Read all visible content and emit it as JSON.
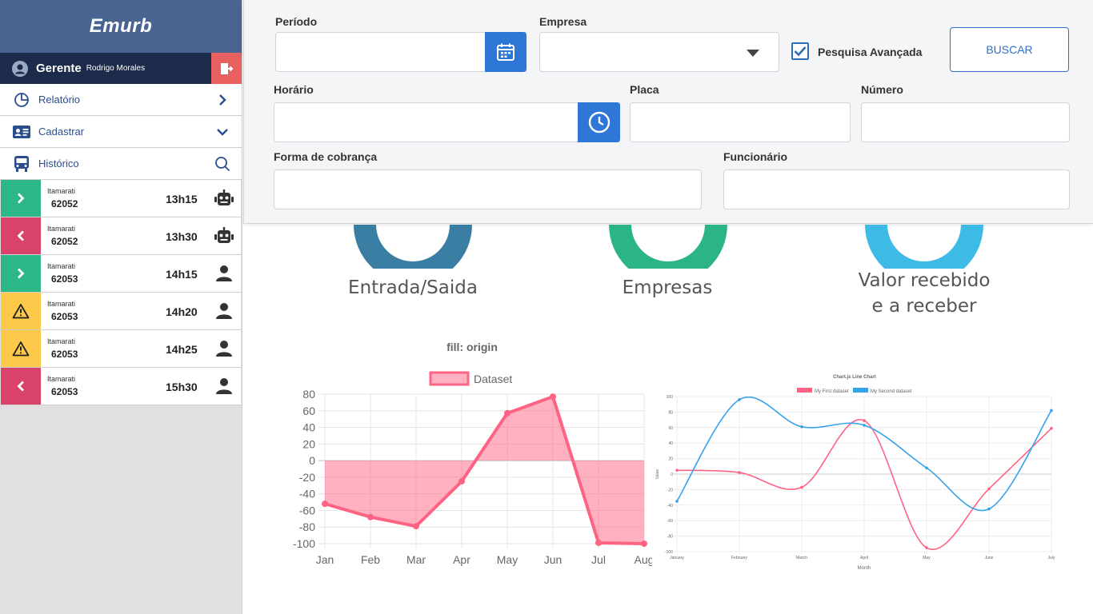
{
  "app": {
    "brand": "Emurb"
  },
  "user": {
    "role": "Gerente",
    "name": "Rodrigo Morales"
  },
  "menu": [
    {
      "label": "Relatório",
      "icon": "pie-chart-icon",
      "right_icon": "chevron-right-icon"
    },
    {
      "label": "Cadastrar",
      "icon": "id-card-icon",
      "right_icon": "chevron-down-icon"
    },
    {
      "label": "Histórico",
      "icon": "bus-icon",
      "right_icon": "search-icon"
    }
  ],
  "history": [
    {
      "company": "Itamarati",
      "plate": "62052",
      "time": "13h15",
      "status": "entrada",
      "status_color": "#2bb886",
      "status_icon": "chevron-right-icon",
      "type_icon": "robot-icon"
    },
    {
      "company": "Itamarati",
      "plate": "62052",
      "time": "13h30",
      "status": "saida",
      "status_color": "#d9426b",
      "status_icon": "chevron-left-icon",
      "type_icon": "robot-icon"
    },
    {
      "company": "Itamarati",
      "plate": "62053",
      "time": "14h15",
      "status": "entrada",
      "status_color": "#2bb886",
      "status_icon": "chevron-right-icon",
      "type_icon": "person-icon"
    },
    {
      "company": "Itamarati",
      "plate": "62053",
      "time": "14h20",
      "status": "alerta",
      "status_color": "#fcc94a",
      "status_icon": "warning-icon",
      "type_icon": "person-icon"
    },
    {
      "company": "Itamarati",
      "plate": "62053",
      "time": "14h25",
      "status": "alerta",
      "status_color": "#fcc94a",
      "status_icon": "warning-icon",
      "type_icon": "person-icon"
    },
    {
      "company": "Itamarati",
      "plate": "62053",
      "time": "15h30",
      "status": "saida",
      "status_color": "#d9426b",
      "status_icon": "chevron-left-icon",
      "type_icon": "person-icon"
    }
  ],
  "filters": {
    "periodo": {
      "label": "Período",
      "value": ""
    },
    "empresa": {
      "label": "Empresa",
      "value": ""
    },
    "advanced": {
      "label": "Pesquisa Avançada",
      "checked": true
    },
    "search_button": "BUSCAR",
    "horario": {
      "label": "Horário",
      "value": ""
    },
    "placa": {
      "label": "Placa",
      "value": ""
    },
    "numero": {
      "label": "Número",
      "value": ""
    },
    "forma_cobranca": {
      "label": "Forma de cobrança",
      "value": ""
    },
    "funcionario": {
      "label": "Funcionário",
      "value": ""
    }
  },
  "donuts": [
    {
      "label": "Entrada/Saida",
      "color": "#3a7fa3"
    },
    {
      "label": "Empresas",
      "color": "#2bb585"
    },
    {
      "label_line1": "Valor recebido",
      "label_line2": "e a receber",
      "color": "#3ebae6"
    }
  ],
  "colors": {
    "primary": "#2f77d6",
    "sidebar_header": "#4a6491",
    "user_bar": "#1c2b4a",
    "logout": "#e8605f"
  },
  "chart_data": [
    {
      "type": "area",
      "title": "fill: origin",
      "categories": [
        "Jan",
        "Feb",
        "Mar",
        "Apr",
        "May",
        "Jun",
        "Jul",
        "Aug"
      ],
      "series": [
        {
          "name": "Dataset",
          "values": [
            -52,
            -68,
            -79,
            -25,
            57,
            77,
            -99,
            -100
          ]
        }
      ],
      "ylim": [
        -100,
        80
      ],
      "yticks": [
        80,
        60,
        40,
        20,
        0,
        -20,
        -40,
        -60,
        -80,
        -100
      ],
      "fill": "origin",
      "color": "#ff6384",
      "grid": true
    },
    {
      "type": "line",
      "title": "Chart.js Line Chart",
      "categories": [
        "January",
        "February",
        "March",
        "April",
        "May",
        "June",
        "July"
      ],
      "xlabel": "Month",
      "ylabel": "Value",
      "ylim": [
        -100,
        100
      ],
      "yticks": [
        100,
        80,
        60,
        40,
        20,
        0,
        -20,
        -40,
        -60,
        -80,
        -100
      ],
      "series": [
        {
          "name": "My First dataset",
          "color": "#ff6384",
          "values": [
            5,
            2,
            -17,
            69,
            -95,
            -19,
            59
          ]
        },
        {
          "name": "My Second dataset",
          "color": "#36a2eb",
          "values": [
            -35,
            96,
            61,
            63,
            8,
            -45,
            82
          ]
        }
      ],
      "grid": true
    }
  ]
}
